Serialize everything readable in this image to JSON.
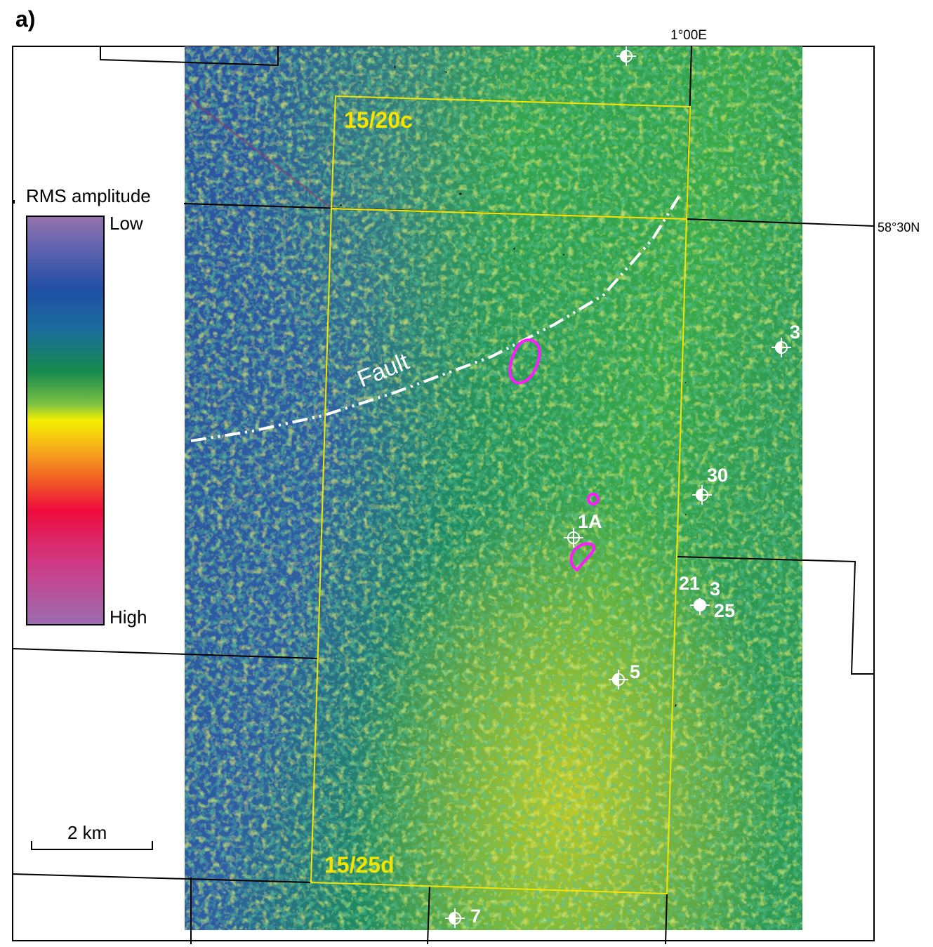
{
  "panel_label": "a)",
  "coordinates": {
    "longitude": "1°00E",
    "latitude": "58°30N"
  },
  "legend": {
    "title": "RMS amplitude",
    "low": "Low",
    "high": "High"
  },
  "scale_bar": "2 km",
  "blocks": [
    "15/20c",
    "15/25d"
  ],
  "fault_label": "Fault",
  "wells": [
    "3",
    "30",
    "1A",
    "21",
    "3",
    "25",
    "5",
    "7"
  ]
}
